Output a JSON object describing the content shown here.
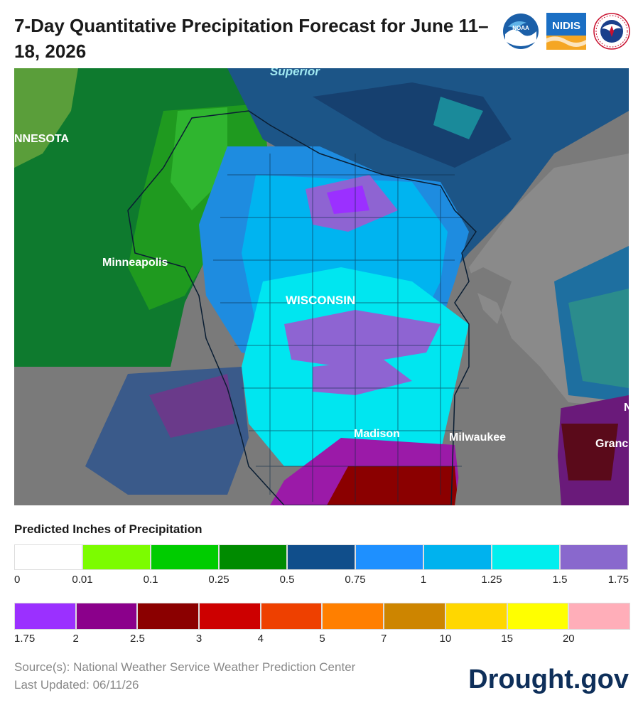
{
  "header": {
    "title": "7-Day Quantitative Precipitation Forecast for June 11–18, 2026",
    "logos": [
      {
        "name": "noaa-logo",
        "text": "NOAA"
      },
      {
        "name": "nidis-logo",
        "text": "NIDIS"
      },
      {
        "name": "nws-logo",
        "text": "NATIONAL WEATHER SERVICE"
      }
    ]
  },
  "map": {
    "labels": {
      "lake": "Superior",
      "state_mn": "NNESOTA",
      "minneapolis": "Minneapolis",
      "wisconsin": "WISCONSIN",
      "madison": "Madison",
      "milwaukee": "Milwaukee",
      "grand": "Granc",
      "edge_letter": "N"
    },
    "colors": {
      "water": "#7a7a7a",
      "white": "#ffffff",
      "lime": "#7fff00",
      "green_light": "#00c800",
      "green": "#009600",
      "navy": "#0f4c81",
      "blue": "#1e90ff",
      "sky": "#00b4f0",
      "cyan": "#00e8f0",
      "lavender": "#8e64d2",
      "violet": "#9b30ff",
      "purple": "#8b008b",
      "maroon": "#8b0000"
    }
  },
  "legend": {
    "title": "Predicted Inches of Precipitation",
    "row1": {
      "colors": [
        "#ffffff",
        "#7cfc00",
        "#00cc00",
        "#008b00",
        "#104e8b",
        "#1e90ff",
        "#00b2ee",
        "#00eeee",
        "#8968cd"
      ],
      "ticks": [
        "0",
        "0.01",
        "0.1",
        "0.25",
        "0.5",
        "0.75",
        "1",
        "1.25",
        "1.5",
        "1.75"
      ]
    },
    "row2": {
      "colors": [
        "#9b30ff",
        "#8b008b",
        "#8b0000",
        "#cd0000",
        "#ee4000",
        "#ff7f00",
        "#cd8500",
        "#ffd700",
        "#ffff00",
        "#ffaeb9"
      ],
      "ticks": [
        "1.75",
        "2",
        "2.5",
        "3",
        "4",
        "5",
        "7",
        "10",
        "15",
        "20"
      ]
    }
  },
  "footer": {
    "source": "Source(s): National Weather Service Weather Prediction Center",
    "updated": "Last Updated: 06/11/26",
    "brand": "Drought.gov"
  }
}
